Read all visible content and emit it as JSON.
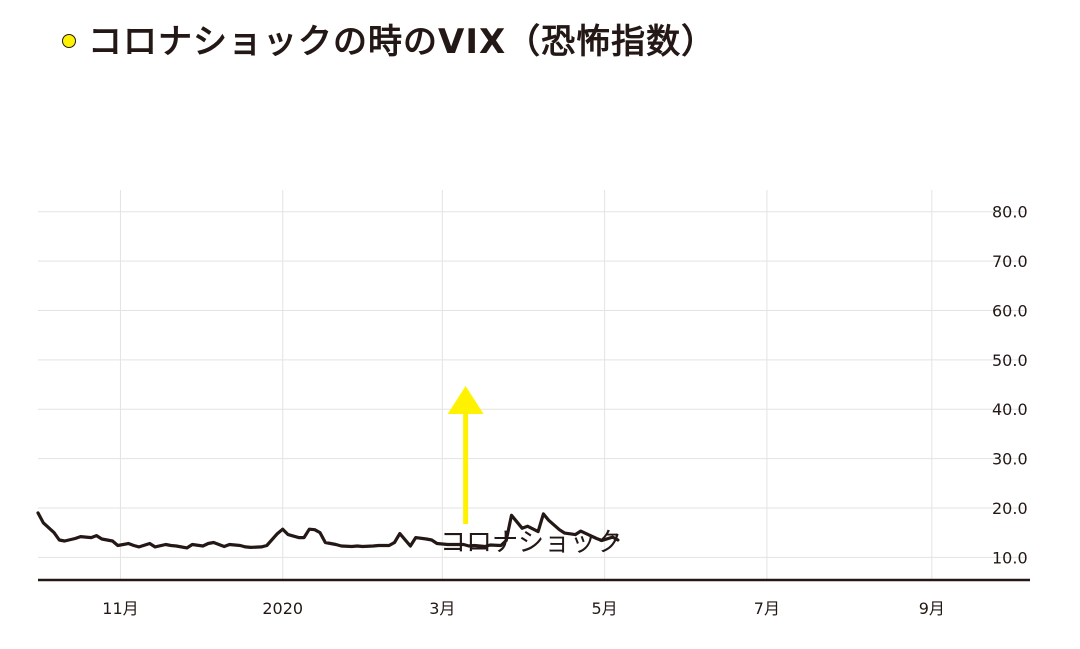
{
  "title": "コロナショックの時のVIX（恐怖指数）",
  "colors": {
    "line": "#231815",
    "grid": "#e3e3e3",
    "axis": "#231815",
    "arrow": "#fff200",
    "title_dot": "#fff200"
  },
  "chart_data": {
    "type": "line",
    "title": "コロナショックの時のVIX（恐怖指数）",
    "xlabel": "",
    "ylabel": "",
    "x_ticks": [
      "11月",
      "2020",
      "3月",
      "5月",
      "7月",
      "9月"
    ],
    "y_ticks": [
      "10.0",
      "20.0",
      "30.0",
      "40.0",
      "50.0",
      "60.0",
      "70.0",
      "80.0"
    ],
    "ylim": [
      5,
      85
    ],
    "xlim": [
      "2019-10-01",
      "2020-09-21"
    ],
    "y_axis_side": "right",
    "grid": true,
    "annotation": {
      "label": "コロナショック",
      "date": "2020-03-09",
      "value": 45.5
    },
    "series": [
      {
        "values": [
          [
            "2019-10-01",
            19.0
          ],
          [
            "2019-10-03",
            17.0
          ],
          [
            "2019-10-07",
            15.0
          ],
          [
            "2019-10-09",
            13.5
          ],
          [
            "2019-10-11",
            13.3
          ],
          [
            "2019-10-15",
            13.8
          ],
          [
            "2019-10-17",
            14.2
          ],
          [
            "2019-10-21",
            14.0
          ],
          [
            "2019-10-23",
            14.4
          ],
          [
            "2019-10-25",
            13.7
          ],
          [
            "2019-10-29",
            13.3
          ],
          [
            "2019-10-31",
            12.4
          ],
          [
            "2019-11-04",
            12.8
          ],
          [
            "2019-11-06",
            12.4
          ],
          [
            "2019-11-08",
            12.1
          ],
          [
            "2019-11-12",
            12.8
          ],
          [
            "2019-11-14",
            12.1
          ],
          [
            "2019-11-18",
            12.6
          ],
          [
            "2019-11-20",
            12.4
          ],
          [
            "2019-11-22",
            12.3
          ],
          [
            "2019-11-26",
            11.9
          ],
          [
            "2019-11-28",
            12.6
          ],
          [
            "2019-12-02",
            12.3
          ],
          [
            "2019-12-04",
            12.8
          ],
          [
            "2019-12-06",
            13.0
          ],
          [
            "2019-12-10",
            12.2
          ],
          [
            "2019-12-12",
            12.6
          ],
          [
            "2019-12-16",
            12.4
          ],
          [
            "2019-12-18",
            12.1
          ],
          [
            "2019-12-20",
            12.0
          ],
          [
            "2019-12-24",
            12.1
          ],
          [
            "2019-12-26",
            12.4
          ],
          [
            "2019-12-30",
            14.8
          ],
          [
            "2020-01-01",
            15.7
          ],
          [
            "2020-01-03",
            14.6
          ],
          [
            "2020-01-07",
            14.0
          ],
          [
            "2020-01-09",
            14.0
          ],
          [
            "2020-01-11",
            15.7
          ],
          [
            "2020-01-13",
            15.6
          ],
          [
            "2020-01-15",
            15.0
          ],
          [
            "2020-01-17",
            13.0
          ],
          [
            "2020-01-21",
            12.6
          ],
          [
            "2020-01-23",
            12.3
          ],
          [
            "2020-01-27",
            12.2
          ],
          [
            "2020-01-29",
            12.3
          ],
          [
            "2020-01-31",
            12.2
          ],
          [
            "2020-02-04",
            12.3
          ],
          [
            "2020-02-06",
            12.4
          ],
          [
            "2020-02-10",
            12.4
          ],
          [
            "2020-02-12",
            13.0
          ],
          [
            "2020-02-14",
            14.8
          ],
          [
            "2020-02-18",
            12.3
          ],
          [
            "2020-02-20",
            14.0
          ],
          [
            "2020-02-24",
            13.7
          ],
          [
            "2020-02-26",
            13.5
          ],
          [
            "2020-02-28",
            12.8
          ],
          [
            "2020-03-03",
            12.6
          ],
          [
            "2020-03-05",
            12.6
          ],
          [
            "2020-03-09",
            12.6
          ],
          [
            "2020-03-11",
            12.3
          ],
          [
            "2020-03-13",
            12.4
          ],
          [
            "2020-03-17",
            12.2
          ],
          [
            "2020-03-19",
            12.5
          ],
          [
            "2020-03-23",
            12.4
          ],
          [
            "2020-03-25",
            13.4
          ],
          [
            "2020-03-27",
            18.5
          ],
          [
            "2020-03-31",
            15.9
          ],
          [
            "2020-04-02",
            16.3
          ],
          [
            "2020-04-06",
            15.2
          ],
          [
            "2020-04-08",
            18.8
          ],
          [
            "2020-04-10",
            17.5
          ],
          [
            "2020-04-14",
            15.6
          ],
          [
            "2020-04-16",
            14.9
          ],
          [
            "2020-04-20",
            14.6
          ],
          [
            "2020-04-22",
            15.3
          ],
          [
            "2020-04-24",
            14.8
          ],
          [
            "2020-04-28",
            13.8
          ],
          [
            "2020-04-30",
            13.4
          ],
          [
            "2020-05-04",
            14.1
          ],
          [
            "2020-05-06",
            13.5
          ]
        ]
      }
    ]
  }
}
